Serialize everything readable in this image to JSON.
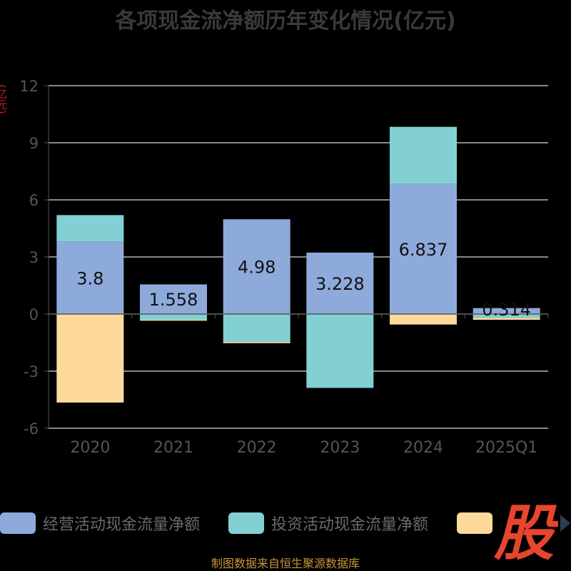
{
  "chart_data": {
    "type": "bar",
    "stacked": true,
    "title": "各项现金流净额历年变化情况(亿元)",
    "y_unit_label": "(亿元)",
    "categories": [
      "2020",
      "2021",
      "2022",
      "2023",
      "2024",
      "2025Q1"
    ],
    "series": [
      {
        "name": "经营活动现金流量净额",
        "color": "#8eaadb",
        "values": [
          3.8,
          1.558,
          4.98,
          3.228,
          6.837,
          0.314
        ]
      },
      {
        "name": "投资活动现金流量净额",
        "color": "#82d0d3",
        "values": [
          1.4,
          -0.3,
          -1.45,
          -3.88,
          3.0,
          -0.2
        ]
      },
      {
        "name": "",
        "color": "#fdd99b",
        "values": [
          -4.65,
          -0.05,
          -0.08,
          0,
          -0.55,
          -0.1
        ]
      }
    ],
    "data_labels": [
      "3.8",
      "1.558",
      "4.98",
      "3.228",
      "6.837",
      "0.314"
    ],
    "y_ticks": [
      "12",
      "9",
      "6",
      "3",
      "0",
      "-3",
      "-6"
    ],
    "y_tick_values": [
      12,
      9,
      6,
      3,
      0,
      -3,
      -6
    ],
    "ylim": [
      -6,
      12
    ],
    "grid": true,
    "legend_position": "bottom"
  },
  "logo_text": "股",
  "source": "制图数据来自恒生聚源数据库"
}
